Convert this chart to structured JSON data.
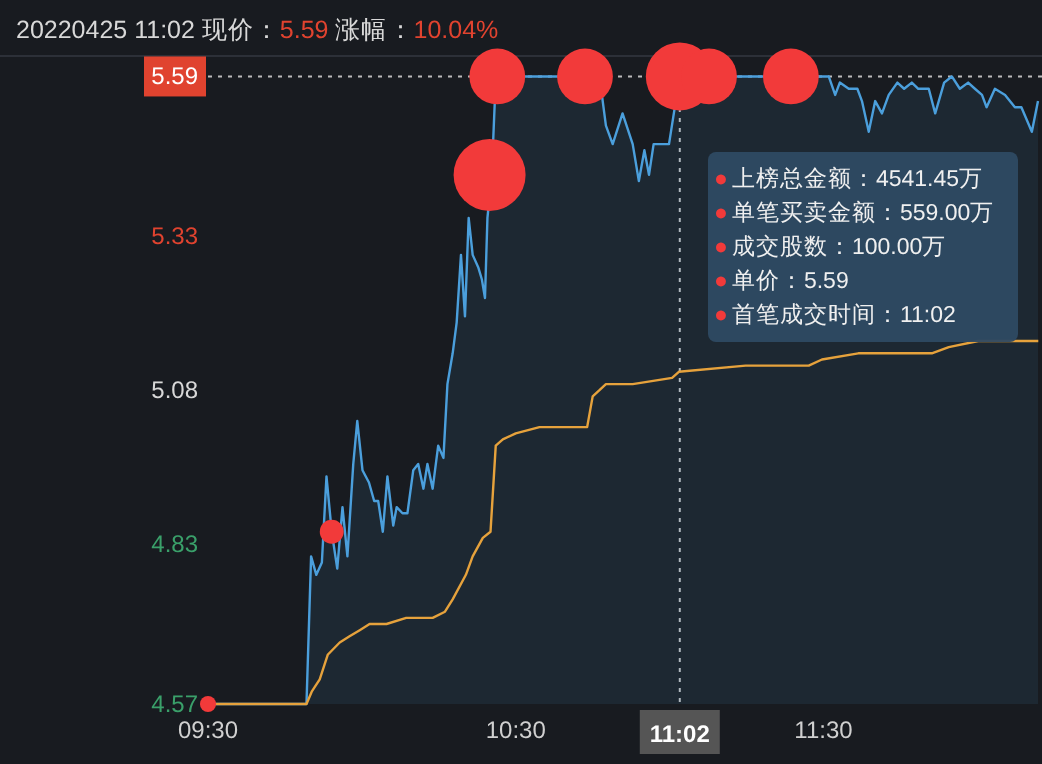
{
  "chart_data": {
    "type": "area",
    "title": "20220425 11:02 现价：5.59 涨幅：10.04%",
    "xlim": [
      9.5,
      12.21
    ],
    "xticks": [
      {
        "value": 9.5,
        "label": "09:30"
      },
      {
        "value": 10.5,
        "label": "10:30"
      },
      {
        "value": 11.5,
        "label": "11:30"
      }
    ],
    "ylim": [
      4.57,
      5.62
    ],
    "yticks": [
      4.57,
      4.83,
      5.08,
      5.33
    ],
    "series": [
      {
        "color": "#4b9fdc",
        "x": [
          9.5,
          9.82,
          9.835,
          9.852,
          9.87,
          9.885,
          9.902,
          9.92,
          9.937,
          9.953,
          9.972,
          9.985,
          10.002,
          10.023,
          10.04,
          10.053,
          10.068,
          10.083,
          10.102,
          10.113,
          10.132,
          10.148,
          10.167,
          10.183,
          10.2,
          10.213,
          10.23,
          10.248,
          10.265,
          10.278,
          10.295,
          10.308,
          10.322,
          10.335,
          10.347,
          10.36,
          10.378,
          10.39,
          10.4,
          10.408,
          10.422,
          10.432,
          10.442,
          10.772,
          10.793,
          10.815,
          10.847,
          10.88,
          10.9,
          10.918,
          10.933,
          10.948,
          10.998,
          11.02,
          11.03,
          11.517,
          11.538,
          11.553,
          11.582,
          11.61,
          11.625,
          11.647,
          11.668,
          11.69,
          11.712,
          11.74,
          11.762,
          11.787,
          11.808,
          11.842,
          11.863,
          11.892,
          11.917,
          11.943,
          11.97,
          11.992,
          12.015,
          12.03,
          12.057,
          12.09,
          12.122,
          12.143,
          12.177,
          12.197
        ],
        "values": [
          4.57,
          4.57,
          4.81,
          4.78,
          4.8,
          4.94,
          4.85,
          4.79,
          4.89,
          4.81,
          4.96,
          5.03,
          4.95,
          4.93,
          4.9,
          4.9,
          4.85,
          4.94,
          4.86,
          4.89,
          4.88,
          4.88,
          4.95,
          4.96,
          4.92,
          4.96,
          4.92,
          4.99,
          4.97,
          5.09,
          5.14,
          5.19,
          5.3,
          5.2,
          5.36,
          5.3,
          5.28,
          5.26,
          5.23,
          5.36,
          5.43,
          5.55,
          5.59,
          5.59,
          5.51,
          5.48,
          5.53,
          5.48,
          5.42,
          5.47,
          5.43,
          5.48,
          5.48,
          5.55,
          5.59,
          5.59,
          5.56,
          5.58,
          5.57,
          5.57,
          5.55,
          5.5,
          5.55,
          5.53,
          5.56,
          5.58,
          5.57,
          5.58,
          5.57,
          5.57,
          5.53,
          5.58,
          5.59,
          5.57,
          5.58,
          5.57,
          5.56,
          5.54,
          5.57,
          5.56,
          5.54,
          5.54,
          5.5,
          5.55
        ]
      },
      {
        "type": "line",
        "color": "#e6a23c",
        "x": [
          9.5,
          9.82,
          9.837,
          9.863,
          9.889,
          9.928,
          9.96,
          9.993,
          10.025,
          10.08,
          10.144,
          10.23,
          10.27,
          10.295,
          10.338,
          10.36,
          10.393,
          10.418,
          10.435,
          10.458,
          10.5,
          10.577,
          10.663,
          10.732,
          10.75,
          10.772,
          10.793,
          10.88,
          11.008,
          11.03,
          11.247,
          11.452,
          11.495,
          11.613,
          11.852,
          11.907,
          12.003,
          12.198
        ],
        "values": [
          4.57,
          4.57,
          4.59,
          4.61,
          4.65,
          4.67,
          4.68,
          4.69,
          4.7,
          4.7,
          4.71,
          4.71,
          4.72,
          4.74,
          4.78,
          4.81,
          4.84,
          4.85,
          4.99,
          5.0,
          5.01,
          5.02,
          5.02,
          5.02,
          5.07,
          5.08,
          5.09,
          5.09,
          5.1,
          5.11,
          5.12,
          5.12,
          5.13,
          5.14,
          5.14,
          5.15,
          5.16,
          5.16
        ]
      },
      {
        "type": "bubble",
        "color": "#f23a3a",
        "x": [
          9.5,
          9.902,
          10.415,
          10.44,
          10.725,
          11.033,
          11.128,
          11.394
        ],
        "values": [
          4.57,
          4.85,
          5.43,
          5.59,
          5.59,
          5.59,
          5.59,
          5.59
        ],
        "sizes": [
          0.05,
          0.11,
          1,
          0.6,
          0.6,
          0.89,
          0.6,
          0.6
        ]
      }
    ],
    "ref_lines": [
      {
        "axis": "y",
        "value": 5.59,
        "label": "5.59",
        "line_style": "dotted"
      },
      {
        "axis": "x",
        "value": 11.033,
        "label": "11:02",
        "line_style": "dotted"
      }
    ],
    "annotations": [
      "●上榜总金额：4541.45万",
      "●单笔买卖金额：559.00万",
      "●成交股数：100.00万",
      "●单价：5.59",
      "●首笔成交时间：11:02"
    ]
  }
}
